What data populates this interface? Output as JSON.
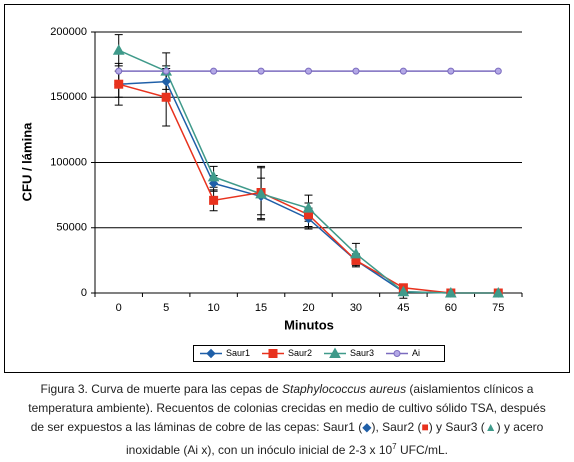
{
  "chart_data": {
    "type": "line",
    "y_axis_title": "CFU / lámina",
    "x_axis_title": "Minutos",
    "categories": [
      "0",
      "5",
      "10",
      "15",
      "20",
      "30",
      "45",
      "60",
      "75"
    ],
    "ylim": [
      0,
      200000
    ],
    "yticks": [
      0,
      50000,
      100000,
      150000,
      200000
    ],
    "grid": true,
    "legend": "bottom",
    "series": [
      {
        "name": "Saur1",
        "color": "#1f5fa8",
        "marker": "diamond",
        "values": [
          160000,
          162000,
          84000,
          74000,
          57000,
          25000,
          1000,
          0,
          0
        ],
        "errors": [
          10000,
          12000,
          6000,
          14000,
          8000,
          4000,
          1000,
          0,
          0
        ]
      },
      {
        "name": "Saur2",
        "color": "#e8321e",
        "marker": "square",
        "values": [
          160000,
          150000,
          71000,
          77000,
          60000,
          25000,
          4000,
          0,
          0
        ],
        "errors": [
          16000,
          22000,
          8000,
          20000,
          9000,
          5000,
          2000,
          0,
          0
        ]
      },
      {
        "name": "Saur3",
        "color": "#3f9a8a",
        "marker": "triangle",
        "values": [
          186000,
          170000,
          89000,
          76000,
          65000,
          30000,
          1000,
          0,
          0
        ],
        "errors": [
          12000,
          14000,
          8000,
          20000,
          10000,
          8000,
          5000,
          0,
          0
        ]
      },
      {
        "name": "Ai",
        "color": "#7b6bbf",
        "marker": "circle",
        "values": [
          170000,
          170000,
          170000,
          170000,
          170000,
          170000,
          170000,
          170000,
          170000
        ]
      }
    ]
  },
  "caption": [
    [
      {
        "text": "Figura 3. Curva de muerte para las cepas de "
      },
      {
        "text": "Staphylococcus aureus",
        "style": "italic"
      },
      {
        "text": " (aislamientos clínicos a"
      }
    ],
    [
      {
        "text": "temperatura ambiente). Recuentos de colonias crecidas en medio de cultivo sólido TSA, después"
      }
    ],
    [
      {
        "text": "de ser expuestos a las láminas de cobre de las cepas: Saur1 ("
      },
      {
        "text": "◆",
        "color": "#1f5fa8"
      },
      {
        "text": "), Saur2 ("
      },
      {
        "text": "■",
        "color": "#e8321e"
      },
      {
        "text": ") y Saur3 ("
      },
      {
        "text": "▲",
        "color": "#3f9a8a"
      },
      {
        "text": ") y acero"
      }
    ],
    [
      {
        "text": "inoxidable (Ai x), con un inóculo inicial de 2-3 x 10"
      },
      {
        "text": "7",
        "style": "sup"
      },
      {
        "text": " UFC/mL."
      }
    ]
  ]
}
